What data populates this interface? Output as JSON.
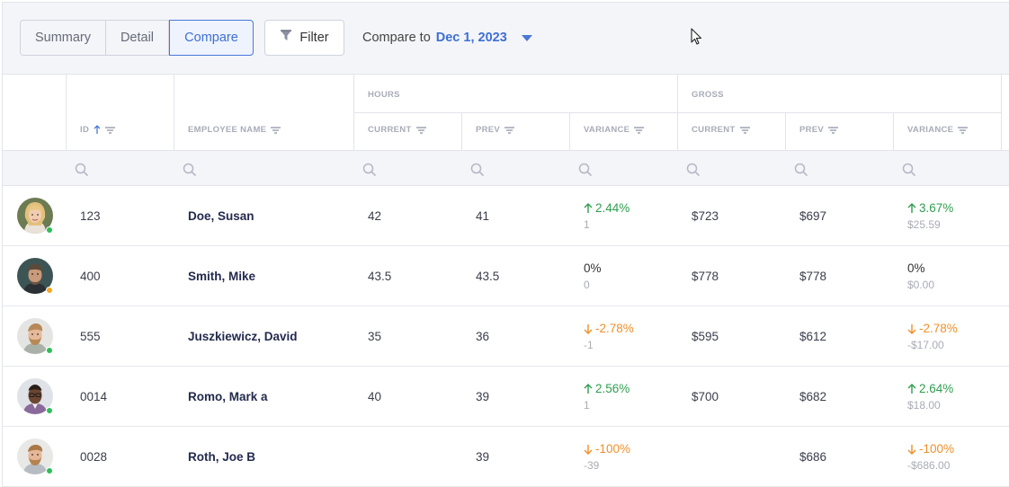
{
  "toolbar": {
    "tabs": [
      "Summary",
      "Detail",
      "Compare"
    ],
    "active_tab": "Compare",
    "filter_label": "Filter",
    "compare_label": "Compare to",
    "compare_date": "Dec 1, 2023"
  },
  "table": {
    "groups": {
      "hours": "HOURS",
      "gross": "GROSS"
    },
    "columns": {
      "id": "ID",
      "employee_name": "EMPLOYEE NAME",
      "hours_current": "CURRENT",
      "hours_prev": "PREV",
      "hours_variance": "VARIANCE",
      "gross_current": "CURRENT",
      "gross_prev": "PREV",
      "gross_variance": "VARIANCE"
    },
    "rows": [
      {
        "id": "123",
        "name": "Doe, Susan",
        "status": "online",
        "status_color": "#2ebd59",
        "hours_current": "42",
        "hours_prev": "41",
        "hours_var": "2.44%",
        "hours_var_dir": "up",
        "hours_var_sub": "1",
        "gross_current": "$723",
        "gross_prev": "$697",
        "gross_var": "3.67%",
        "gross_var_dir": "up",
        "gross_var_sub": "$25.59",
        "avatar": "woman-blonde"
      },
      {
        "id": "400",
        "name": "Smith, Mike",
        "status": "away",
        "status_color": "#f5a623",
        "hours_current": "43.5",
        "hours_prev": "43.5",
        "hours_var": "0%",
        "hours_var_dir": "none",
        "hours_var_sub": "0",
        "gross_current": "$778",
        "gross_prev": "$778",
        "gross_var": "0%",
        "gross_var_dir": "none",
        "gross_var_sub": "$0.00",
        "avatar": "man-dark"
      },
      {
        "id": "555",
        "name": "Juszkiewicz, David",
        "status": "online",
        "status_color": "#2ebd59",
        "hours_current": "35",
        "hours_prev": "36",
        "hours_var": "-2.78%",
        "hours_var_dir": "down",
        "hours_var_sub": "-1",
        "gross_current": "$595",
        "gross_prev": "$612",
        "gross_var": "-2.78%",
        "gross_var_dir": "down",
        "gross_var_sub": "-$17.00",
        "avatar": "man-beard"
      },
      {
        "id": "0014",
        "name": "Romo, Mark a",
        "status": "online",
        "status_color": "#2ebd59",
        "hours_current": "40",
        "hours_prev": "39",
        "hours_var": "2.56%",
        "hours_var_dir": "up",
        "hours_var_sub": "1",
        "gross_current": "$700",
        "gross_prev": "$682",
        "gross_var": "2.64%",
        "gross_var_dir": "up",
        "gross_var_sub": "$18.00",
        "avatar": "man-glasses"
      },
      {
        "id": "0028",
        "name": "Roth, Joe B",
        "status": "online",
        "status_color": "#2ebd59",
        "hours_current": "",
        "hours_prev": "39",
        "hours_var": "-100%",
        "hours_var_dir": "down",
        "hours_var_sub": "-39",
        "gross_current": "",
        "gross_prev": "$686",
        "gross_var": "-100%",
        "gross_var_dir": "down",
        "gross_var_sub": "-$686.00",
        "avatar": "man-beard-2"
      }
    ]
  },
  "icons": {
    "sort": "sort-ascending-arrow-icon",
    "column_filter": "column-filter-icon",
    "search": "search-icon",
    "filter": "funnel-icon",
    "dropdown": "caret-down-icon",
    "up": "arrow-up-icon",
    "down": "arrow-down-icon"
  },
  "colors": {
    "accent": "#3f6fd6",
    "positive": "#2e9e4f",
    "negative": "#ef8f2b",
    "online": "#2ebd59",
    "away": "#f5a623"
  }
}
